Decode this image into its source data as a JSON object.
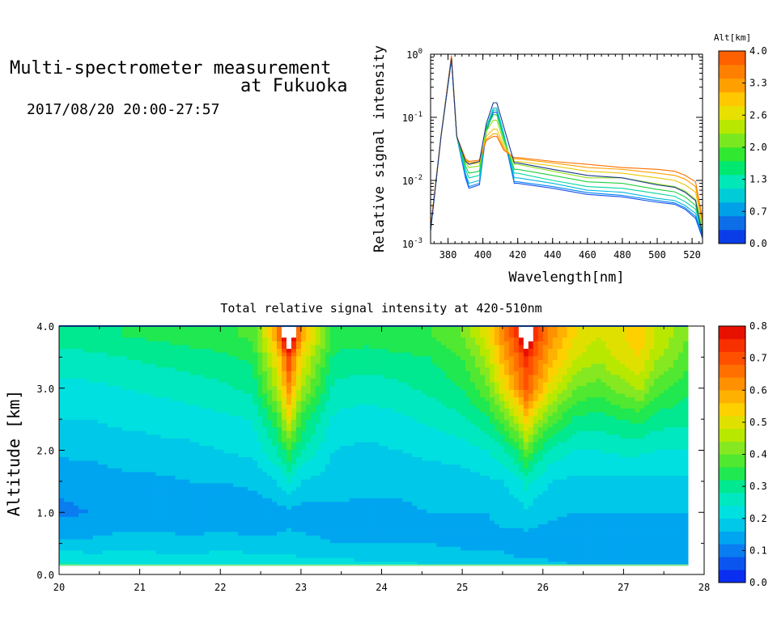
{
  "header": {
    "title_line1": "Multi-spectrometer measurement",
    "title_line2": "at Fukuoka",
    "datetime": "2017/08/20 20:00-27:57"
  },
  "chart_data": [
    {
      "type": "line",
      "id": "spectrum",
      "xlabel": "Wavelength[nm]",
      "ylabel": "Relative signal intensity",
      "yscale": "log",
      "xlim": [
        370,
        526
      ],
      "ylim": [
        0.001,
        1
      ],
      "x_ticks": [
        "380",
        "400",
        "420",
        "440",
        "460",
        "480",
        "500",
        "520"
      ],
      "y_ticks": [
        {
          "base": "10",
          "exp": "-3"
        },
        {
          "base": "10",
          "exp": "-2"
        },
        {
          "base": "10",
          "exp": "-1"
        },
        {
          "base": "10",
          "exp": "0"
        }
      ],
      "x": [
        370,
        376,
        382,
        385,
        390,
        392,
        398,
        402,
        406,
        408,
        412,
        418,
        420,
        440,
        460,
        480,
        500,
        510,
        516,
        522,
        526
      ],
      "series": [
        {
          "color": "#1550ee",
          "values": [
            0.0016,
            0.05,
            0.82,
            0.05,
            0.011,
            0.0075,
            0.0085,
            0.06,
            0.12,
            0.12,
            0.05,
            0.009,
            0.009,
            0.0075,
            0.006,
            0.0055,
            0.0045,
            0.0042,
            0.0035,
            0.0025,
            0.0012
          ]
        },
        {
          "color": "#0080f0",
          "values": [
            0.0016,
            0.05,
            0.84,
            0.05,
            0.012,
            0.008,
            0.009,
            0.065,
            0.13,
            0.13,
            0.052,
            0.0095,
            0.0095,
            0.008,
            0.0064,
            0.0058,
            0.0048,
            0.0044,
            0.0037,
            0.0027,
            0.0013
          ]
        },
        {
          "color": "#00b8e0",
          "values": [
            0.0017,
            0.05,
            0.86,
            0.05,
            0.013,
            0.009,
            0.01,
            0.07,
            0.14,
            0.14,
            0.055,
            0.011,
            0.011,
            0.009,
            0.007,
            0.0065,
            0.0052,
            0.0048,
            0.004,
            0.003,
            0.0014
          ]
        },
        {
          "color": "#00d8a0",
          "values": [
            0.0017,
            0.05,
            0.88,
            0.05,
            0.015,
            0.011,
            0.012,
            0.07,
            0.13,
            0.13,
            0.05,
            0.013,
            0.013,
            0.01,
            0.008,
            0.0075,
            0.0062,
            0.0056,
            0.0046,
            0.0035,
            0.0015
          ]
        },
        {
          "color": "#20d040",
          "values": [
            0.0017,
            0.05,
            0.9,
            0.05,
            0.017,
            0.013,
            0.014,
            0.065,
            0.11,
            0.11,
            0.045,
            0.015,
            0.015,
            0.012,
            0.0095,
            0.009,
            0.0072,
            0.0066,
            0.0055,
            0.004,
            0.0016
          ]
        },
        {
          "color": "#90e020",
          "values": [
            0.0018,
            0.05,
            0.92,
            0.05,
            0.019,
            0.016,
            0.017,
            0.06,
            0.09,
            0.09,
            0.04,
            0.018,
            0.018,
            0.014,
            0.011,
            0.011,
            0.0088,
            0.008,
            0.0068,
            0.005,
            0.0018
          ]
        },
        {
          "color": "#e8c800",
          "values": [
            0.0018,
            0.05,
            0.93,
            0.05,
            0.021,
            0.018,
            0.019,
            0.05,
            0.065,
            0.065,
            0.035,
            0.02,
            0.02,
            0.017,
            0.014,
            0.013,
            0.011,
            0.01,
            0.0085,
            0.0065,
            0.002
          ]
        },
        {
          "color": "#ffa000",
          "values": [
            0.0018,
            0.05,
            0.94,
            0.05,
            0.022,
            0.019,
            0.02,
            0.045,
            0.055,
            0.055,
            0.032,
            0.022,
            0.022,
            0.019,
            0.016,
            0.015,
            0.013,
            0.012,
            0.0105,
            0.008,
            0.0022
          ]
        },
        {
          "color": "#ff7000",
          "values": [
            0.0018,
            0.05,
            0.95,
            0.05,
            0.022,
            0.02,
            0.021,
            0.043,
            0.05,
            0.05,
            0.03,
            0.023,
            0.023,
            0.02,
            0.018,
            0.016,
            0.015,
            0.014,
            0.012,
            0.0095,
            0.0024
          ]
        },
        {
          "color": "#1a3a8a",
          "values": [
            0.0016,
            0.05,
            0.86,
            0.05,
            0.02,
            0.018,
            0.02,
            0.08,
            0.17,
            0.17,
            0.07,
            0.019,
            0.019,
            0.015,
            0.012,
            0.011,
            0.0085,
            0.0078,
            0.0065,
            0.0048,
            0.0013
          ]
        }
      ],
      "colorbar": {
        "title": "Alt[km]",
        "tick_labels": [
          "0.0",
          "0.7",
          "1.3",
          "2.0",
          "2.6",
          "3.3",
          "4.0"
        ],
        "colors": [
          "#0a3de8",
          "#0d6ee8",
          "#00a0e8",
          "#00ccd8",
          "#00e8b8",
          "#00e870",
          "#30e830",
          "#7ae820",
          "#b8e800",
          "#e8e000",
          "#ffc800",
          "#ffa000",
          "#ff8000",
          "#ff6000"
        ]
      }
    },
    {
      "type": "heatmap",
      "id": "time_altitude",
      "title": "Total relative signal intensity at 420-510nm",
      "ylabel": "Altitude [km]",
      "xlim": [
        20,
        28
      ],
      "ylim": [
        0.0,
        4.0
      ],
      "x_ticks": [
        "20",
        "21",
        "22",
        "23",
        "24",
        "25",
        "26",
        "27",
        "28"
      ],
      "y_ticks": [
        "0.0",
        "1.0",
        "2.0",
        "3.0",
        "4.0"
      ],
      "data_xrange": [
        20.0,
        27.8
      ],
      "data_yrange": [
        0.15,
        4.0
      ],
      "x": [
        20.0,
        20.4,
        20.8,
        21.2,
        21.6,
        22.0,
        22.4,
        22.7,
        22.85,
        23.0,
        23.4,
        23.8,
        24.2,
        24.6,
        25.0,
        25.3,
        25.5,
        25.7,
        25.8,
        25.9,
        26.1,
        26.4,
        26.7,
        27.0,
        27.2,
        27.4,
        27.8
      ],
      "y": [
        0.15,
        0.5,
        1.0,
        1.5,
        2.0,
        2.5,
        3.0,
        3.5,
        3.85,
        4.0
      ],
      "z": [
        [
          0.26,
          0.24,
          0.24,
          0.23,
          0.23,
          0.24,
          0.24,
          0.23,
          0.23,
          0.22,
          0.22,
          0.21,
          0.21,
          0.2,
          0.19,
          0.18,
          0.18,
          0.17,
          0.17,
          0.17,
          0.17,
          0.16,
          0.16,
          0.16,
          0.16,
          0.15,
          0.15
        ],
        [
          0.17,
          0.17,
          0.18,
          0.18,
          0.17,
          0.18,
          0.17,
          0.17,
          0.17,
          0.17,
          0.16,
          0.16,
          0.16,
          0.16,
          0.15,
          0.15,
          0.15,
          0.14,
          0.14,
          0.14,
          0.13,
          0.13,
          0.13,
          0.13,
          0.13,
          0.13,
          0.13
        ],
        [
          0.11,
          0.12,
          0.13,
          0.13,
          0.13,
          0.13,
          0.13,
          0.14,
          0.15,
          0.14,
          0.15,
          0.15,
          0.15,
          0.16,
          0.16,
          0.16,
          0.17,
          0.18,
          0.19,
          0.18,
          0.17,
          0.16,
          0.16,
          0.16,
          0.16,
          0.16,
          0.16
        ],
        [
          0.13,
          0.14,
          0.15,
          0.15,
          0.16,
          0.16,
          0.17,
          0.2,
          0.24,
          0.2,
          0.18,
          0.17,
          0.17,
          0.18,
          0.18,
          0.19,
          0.2,
          0.23,
          0.26,
          0.23,
          0.2,
          0.19,
          0.19,
          0.19,
          0.19,
          0.19,
          0.19
        ],
        [
          0.17,
          0.17,
          0.18,
          0.19,
          0.19,
          0.2,
          0.21,
          0.28,
          0.35,
          0.28,
          0.2,
          0.19,
          0.2,
          0.21,
          0.22,
          0.24,
          0.27,
          0.33,
          0.4,
          0.33,
          0.27,
          0.24,
          0.24,
          0.25,
          0.25,
          0.24,
          0.24
        ],
        [
          0.2,
          0.2,
          0.21,
          0.21,
          0.22,
          0.23,
          0.24,
          0.35,
          0.5,
          0.35,
          0.23,
          0.22,
          0.23,
          0.25,
          0.27,
          0.31,
          0.38,
          0.47,
          0.55,
          0.47,
          0.38,
          0.31,
          0.3,
          0.32,
          0.33,
          0.3,
          0.29
        ],
        [
          0.23,
          0.23,
          0.24,
          0.25,
          0.26,
          0.27,
          0.29,
          0.45,
          0.62,
          0.45,
          0.27,
          0.26,
          0.27,
          0.29,
          0.32,
          0.39,
          0.5,
          0.62,
          0.7,
          0.62,
          0.5,
          0.4,
          0.38,
          0.42,
          0.45,
          0.38,
          0.33
        ],
        [
          0.26,
          0.27,
          0.28,
          0.29,
          0.3,
          0.31,
          0.33,
          0.52,
          0.72,
          0.52,
          0.31,
          0.3,
          0.31,
          0.32,
          0.36,
          0.45,
          0.58,
          0.68,
          0.74,
          0.68,
          0.58,
          0.48,
          0.45,
          0.5,
          0.52,
          0.45,
          0.38
        ],
        [
          0.3,
          0.31,
          0.32,
          0.33,
          0.34,
          0.35,
          0.37,
          0.6,
          0.95,
          0.6,
          0.35,
          0.34,
          0.35,
          0.36,
          0.4,
          0.5,
          0.62,
          0.74,
          0.95,
          0.74,
          0.62,
          0.52,
          0.48,
          0.52,
          0.55,
          0.48,
          0.4
        ],
        [
          0.3,
          0.31,
          0.32,
          0.33,
          0.34,
          0.35,
          0.37,
          0.6,
          0.95,
          0.6,
          0.35,
          0.34,
          0.35,
          0.36,
          0.4,
          0.5,
          0.62,
          0.74,
          0.95,
          0.74,
          0.62,
          0.52,
          0.48,
          0.52,
          0.55,
          0.48,
          0.4
        ]
      ],
      "colorbar": {
        "tick_labels": [
          "0.0",
          "0.1",
          "0.2",
          "0.3",
          "0.4",
          "0.5",
          "0.6",
          "0.7",
          "0.8"
        ],
        "range": [
          0.0,
          0.8
        ],
        "colors": [
          "#0a2ef0",
          "#0a55f0",
          "#0a7df0",
          "#00a5f0",
          "#00c8e8",
          "#00e0e0",
          "#00e8c0",
          "#00e890",
          "#20e850",
          "#50e830",
          "#85e820",
          "#b8e800",
          "#e0e000",
          "#ffd000",
          "#ffb000",
          "#ff9000",
          "#ff7000",
          "#ff5000",
          "#f83000",
          "#e81000"
        ],
        "over_color": "#ffffff"
      }
    }
  ]
}
